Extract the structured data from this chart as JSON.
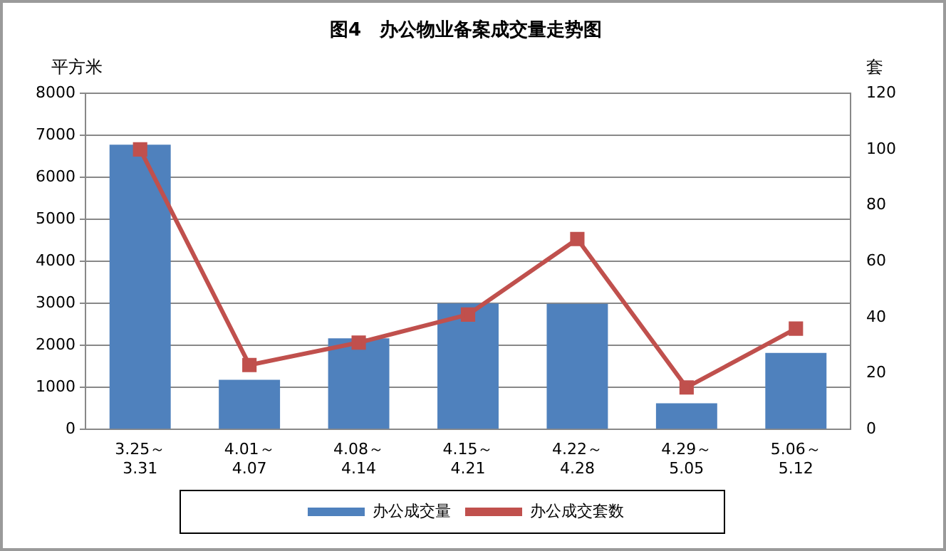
{
  "chart_data": {
    "type": "bar",
    "title": "图4　办公物业备案成交量走势图",
    "ylabel": "平方米",
    "y2label": "套",
    "categories": [
      "3.25～\n3.31",
      "4.01～\n4.07",
      "4.08～\n4.14",
      "4.15～\n4.21",
      "4.22～\n4.28",
      "4.29～\n5.05",
      "5.06～\n5.12"
    ],
    "series": [
      {
        "name": "办公成交量",
        "color": "#4f81bd",
        "values": [
          6780,
          1180,
          2170,
          3000,
          2990,
          620,
          1820
        ]
      },
      {
        "name": "办公成交套数",
        "type": "line",
        "axis": "y2",
        "color": "#c0504d",
        "values": [
          100,
          23,
          31,
          41,
          68,
          15,
          36
        ]
      }
    ],
    "ylim": [
      0,
      8000
    ],
    "yticks": [
      0,
      1000,
      2000,
      3000,
      4000,
      5000,
      6000,
      7000,
      8000
    ],
    "y2lim": [
      0,
      120
    ],
    "y2ticks": [
      0,
      20,
      40,
      60,
      80,
      100,
      120
    ],
    "grid": "y",
    "legend": "bottom",
    "marker": "square"
  }
}
